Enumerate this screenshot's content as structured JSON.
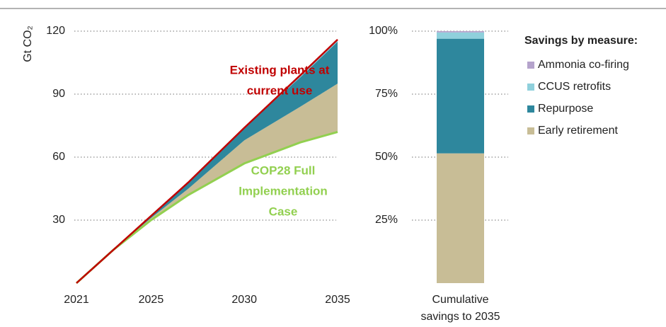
{
  "chart_data": [
    {
      "type": "area",
      "y_label": "Gt CO₂",
      "x": [
        2021,
        2022,
        2023,
        2025,
        2027,
        2030,
        2033,
        2035
      ],
      "xlim": [
        2021,
        2035
      ],
      "xticks": [
        2021,
        2025,
        2030,
        2035
      ],
      "ylim": [
        0,
        120
      ],
      "yticks": [
        30,
        60,
        90,
        120
      ],
      "grid": true,
      "lines": [
        {
          "label": [
            "COP28 Full",
            "Implementation",
            "Case"
          ],
          "color": "#92d050",
          "values": [
            0,
            8,
            16,
            30,
            42,
            57,
            67,
            72
          ]
        },
        {
          "label": [
            "Existing plants at",
            "current use"
          ],
          "color": "#c00000",
          "values": [
            0,
            8,
            16,
            32,
            48,
            74,
            99,
            116
          ]
        }
      ],
      "stacked_areas": [
        {
          "color": "#c8bd96",
          "values": [
            0,
            0,
            0,
            1,
            3,
            11,
            17,
            23
          ]
        },
        {
          "color": "#2e879d",
          "values": [
            0,
            0,
            0,
            1,
            3,
            6,
            14,
            20
          ]
        },
        {
          "color": "#8fd0dc",
          "values": [
            0,
            0,
            0,
            0,
            0,
            0,
            0.8,
            0.8
          ]
        },
        {
          "color": "#b5a3cc",
          "values": [
            0,
            0,
            0,
            0,
            0,
            0,
            0.2,
            0.2
          ]
        }
      ]
    },
    {
      "type": "stacked_bar",
      "legend_title": "Savings by measure:",
      "categories": [
        [
          "Cumulative",
          "savings to 2035"
        ]
      ],
      "ylim": [
        0,
        100
      ],
      "yticks": [
        {
          "value": 25,
          "label": "25%"
        },
        {
          "value": 50,
          "label": "50%"
        },
        {
          "value": 75,
          "label": "75%"
        },
        {
          "value": 100,
          "label": "100%"
        }
      ],
      "grid": true,
      "series": [
        {
          "name": "Early retirement",
          "color": "#c8bd96",
          "values": [
            51.5
          ]
        },
        {
          "name": "Repurpose",
          "color": "#2e879d",
          "values": [
            45.5
          ]
        },
        {
          "name": "CCUS retrofits",
          "color": "#8fd0dc",
          "values": [
            2.5
          ]
        },
        {
          "name": "Ammonia co-firing",
          "color": "#b5a3cc",
          "values": [
            0.5
          ]
        }
      ]
    }
  ]
}
